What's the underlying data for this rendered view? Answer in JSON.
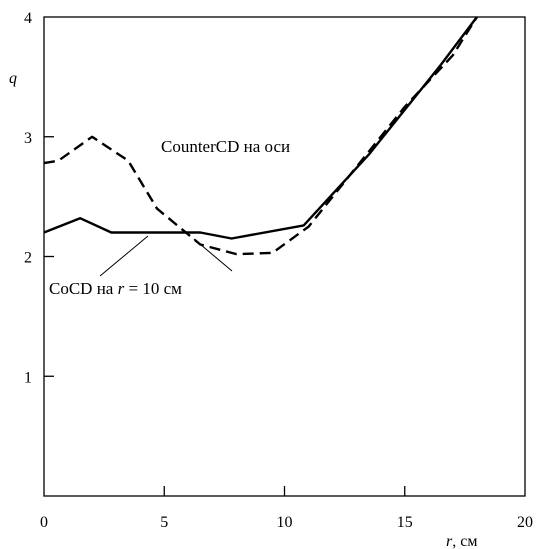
{
  "chart_data": {
    "type": "line",
    "xlabel": "r",
    "xunit": ", см",
    "ylabel": "q",
    "xlim": [
      0,
      20
    ],
    "ylim": [
      0,
      4
    ],
    "grid": false,
    "x_ticks": [
      "0",
      "5",
      "10",
      "15",
      "20"
    ],
    "y_ticks": [
      "1",
      "2",
      "3",
      "4"
    ],
    "series": [
      {
        "name": "CoCD на r = 10 см",
        "style": "solid",
        "color": "#000000",
        "points": [
          [
            0,
            2.2
          ],
          [
            1.5,
            2.32
          ],
          [
            2.8,
            2.2
          ],
          [
            6.5,
            2.2
          ],
          [
            7.8,
            2.15
          ],
          [
            10.8,
            2.26
          ],
          [
            13.5,
            2.85
          ],
          [
            16.5,
            3.6
          ],
          [
            18.0,
            4.0
          ]
        ]
      },
      {
        "name": "CounterCD на оси",
        "style": "dashed",
        "color": "#000000",
        "points": [
          [
            0,
            2.78
          ],
          [
            0.6,
            2.8
          ],
          [
            2.0,
            3.0
          ],
          [
            3.5,
            2.8
          ],
          [
            4.7,
            2.4
          ],
          [
            6.5,
            2.1
          ],
          [
            8.0,
            2.02
          ],
          [
            9.5,
            2.03
          ],
          [
            11.0,
            2.25
          ],
          [
            13.0,
            2.75
          ],
          [
            15.0,
            3.25
          ],
          [
            17.0,
            3.68
          ],
          [
            18.0,
            4.0
          ]
        ]
      }
    ],
    "annotations": [
      {
        "text": "CounterCD на оси",
        "series": 1
      },
      {
        "text_main": "CoCD на ",
        "text_var": "r",
        "text_tail": " = 10 см",
        "series": 0
      }
    ]
  }
}
